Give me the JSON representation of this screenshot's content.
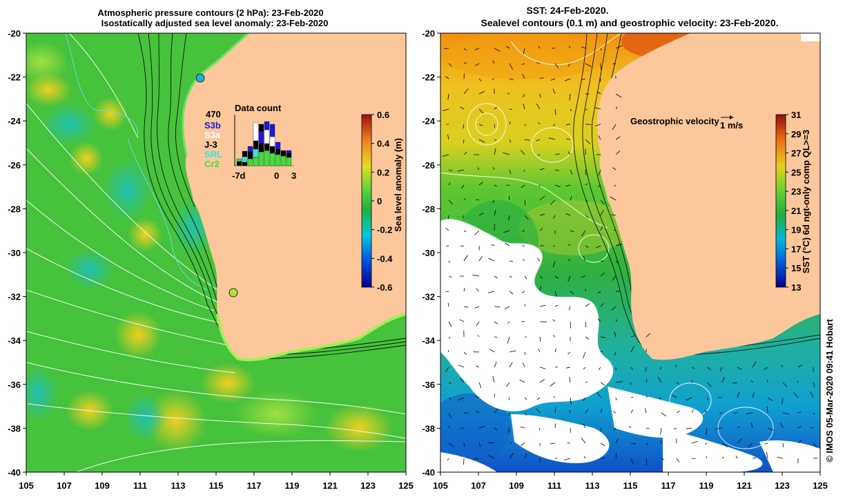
{
  "left_panel": {
    "title_line1": "Atmospheric pressure contours (2 hPa): 23-Feb-2020",
    "title_line2": "Isostatically adjusted sea level anomaly: 23-Feb-2020",
    "colorbar": {
      "label": "Sea level anomaly (m)",
      "ticks": [
        "0.6",
        "0.4",
        "0.2",
        "0",
        "-0.2",
        "-0.4",
        "-0.6"
      ]
    },
    "data_count": {
      "title": "Data count",
      "max_label": "470",
      "x_labels": [
        "-7d",
        "0",
        "3"
      ],
      "legend": [
        {
          "label": "S3b",
          "color": "#1a1adc"
        },
        {
          "label": "S3a",
          "color": "#ffffff"
        },
        {
          "label": "J-3",
          "color": "#000000"
        },
        {
          "label": "SRL",
          "color": "#33e6e6"
        },
        {
          "label": "Cr2",
          "color": "#3ee03e"
        }
      ]
    }
  },
  "right_panel": {
    "title_line1": "SST: 24-Feb-2020.",
    "title_line2": "Sealevel contours (0.1 m) and geostrophic velocity: 23-Feb-2020.",
    "velocity_legend_label": "Geostrophic velocity",
    "velocity_scale_label": "1 m/s",
    "colorbar": {
      "label": "SST (°C) 6d ngt-only comp QL>=3",
      "ticks": [
        "31",
        "29",
        "27",
        "25",
        "23",
        "21",
        "19",
        "17",
        "15",
        "13"
      ]
    }
  },
  "axes": {
    "lat_ticks": [
      "-20",
      "-22",
      "-24",
      "-26",
      "-28",
      "-30",
      "-32",
      "-34",
      "-36",
      "-38",
      "-40"
    ],
    "lon_ticks": [
      "105",
      "107",
      "109",
      "111",
      "113",
      "115",
      "117",
      "119",
      "121",
      "123",
      "125"
    ]
  },
  "credit": "© IMOS 05-Mar-2020 09:41 Hobart"
}
